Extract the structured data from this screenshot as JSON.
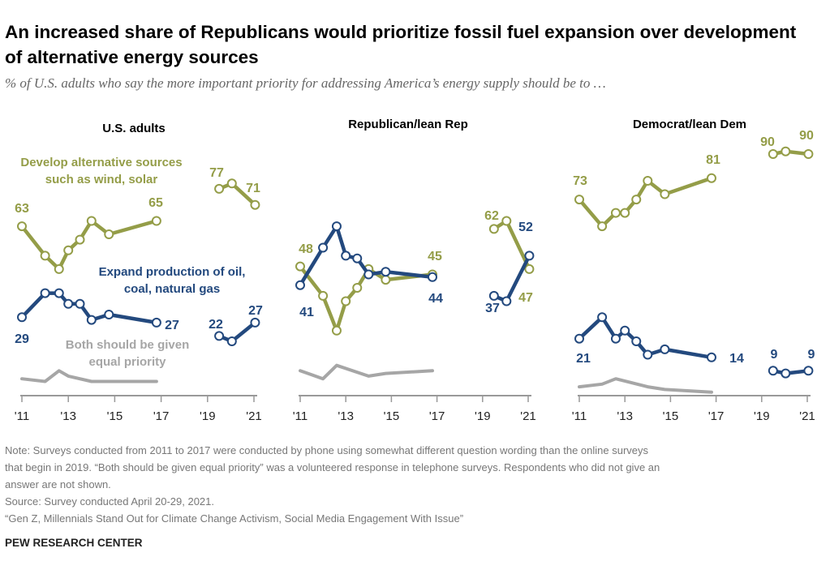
{
  "title": "An increased share of Republicans would prioritize fossil fuel expansion over development of alternative energy sources",
  "subtitle": "% of U.S. adults who say the more important priority for addressing America’s energy supply should be to …",
  "notes": [
    "Note: Surveys conducted from 2011 to 2017 were conducted by phone using somewhat different question wording than the online surveys",
    "that begin in 2019. “Both should be given equal priority” was a volunteered response in telephone surveys. Respondents who did not give an",
    "answer are not shown.",
    "Source: Survey conducted April 20-29, 2021.",
    "“Gen Z, Millennials Stand Out for Climate Change Activism, Social Media Engagement With Issue”"
  ],
  "source_org": "PEW RESEARCH CENTER",
  "colors": {
    "alternative": "#949d48",
    "fossil": "#23497e",
    "both": "#a6a6a6",
    "axis": "#999999"
  },
  "series_labels": {
    "alternative": [
      "Develop alternative sources",
      "such as wind, solar"
    ],
    "fossil": [
      "Expand production of oil,",
      "coal, natural gas"
    ],
    "both": [
      "Both should be given",
      "equal priority"
    ]
  },
  "chart_data": [
    {
      "type": "line",
      "title": "U.S. adults",
      "x_ticks": [
        "'11",
        "'13",
        "'15",
        "'17",
        "'19",
        "'21"
      ],
      "xlim": [
        2011,
        2021
      ],
      "ylim": [
        0,
        100
      ],
      "grid": false,
      "x": [
        2011.0,
        2012.0,
        2012.6,
        2013.0,
        2013.5,
        2014.0,
        2014.75,
        2016.8,
        2019.5,
        2020.05,
        2021.05
      ],
      "series": [
        {
          "key": "alternative",
          "name": "Develop alternative sources such as wind, solar",
          "values": [
            63,
            52,
            47,
            54,
            58,
            65,
            60,
            65,
            77,
            79,
            71
          ],
          "data_labels": [
            "63",
            "65",
            "77",
            "71"
          ]
        },
        {
          "key": "fossil",
          "name": "Expand production of oil, coal, natural gas",
          "values": [
            29,
            38,
            38,
            34,
            34,
            28,
            30,
            27,
            22,
            20,
            27
          ],
          "data_labels": [
            "29",
            "27",
            "22",
            "27"
          ]
        },
        {
          "key": "both",
          "name": "Both should be given equal priority",
          "values": [
            6,
            5,
            9,
            7,
            null,
            5,
            5,
            5,
            null,
            null,
            null
          ]
        }
      ]
    },
    {
      "type": "line",
      "title": "Republican/lean Rep",
      "x_ticks": [
        "'11",
        "'13",
        "'15",
        "'17",
        "'19",
        "'21"
      ],
      "xlim": [
        2011,
        2021
      ],
      "ylim": [
        0,
        100
      ],
      "grid": false,
      "x": [
        2011.0,
        2012.0,
        2012.6,
        2013.0,
        2013.5,
        2014.0,
        2014.75,
        2016.8,
        2019.5,
        2020.05,
        2021.05
      ],
      "series": [
        {
          "key": "alternative",
          "values": [
            48,
            37,
            24,
            35,
            40,
            47,
            43,
            45,
            62,
            65,
            47
          ],
          "data_labels": [
            "48",
            "45",
            "62",
            "47"
          ]
        },
        {
          "key": "fossil",
          "values": [
            41,
            55,
            63,
            52,
            51,
            45,
            46,
            44,
            37,
            35,
            52
          ],
          "data_labels": [
            "41",
            "44",
            "37",
            "52"
          ]
        },
        {
          "key": "both",
          "values": [
            9,
            6,
            11,
            null,
            null,
            7,
            8,
            9,
            null,
            null,
            null
          ]
        }
      ]
    },
    {
      "type": "line",
      "title": "Democrat/lean Dem",
      "x_ticks": [
        "'11",
        "'13",
        "'15",
        "'17",
        "'19",
        "'21"
      ],
      "xlim": [
        2011,
        2021
      ],
      "ylim": [
        0,
        100
      ],
      "grid": false,
      "x": [
        2011.0,
        2012.0,
        2012.6,
        2013.0,
        2013.5,
        2014.0,
        2014.75,
        2016.8,
        2019.5,
        2020.05,
        2021.05
      ],
      "series": [
        {
          "key": "alternative",
          "values": [
            73,
            63,
            68,
            68,
            73,
            80,
            75,
            81,
            90,
            91,
            90
          ],
          "data_labels": [
            "73",
            "81",
            "90",
            "90"
          ]
        },
        {
          "key": "fossil",
          "values": [
            21,
            29,
            21,
            24,
            20,
            15,
            17,
            14,
            9,
            8,
            9
          ],
          "data_labels": [
            "21",
            "14",
            "9",
            "9"
          ]
        },
        {
          "key": "both",
          "values": [
            3,
            4,
            6,
            null,
            null,
            3,
            2,
            1,
            null,
            null,
            null
          ]
        }
      ]
    }
  ]
}
